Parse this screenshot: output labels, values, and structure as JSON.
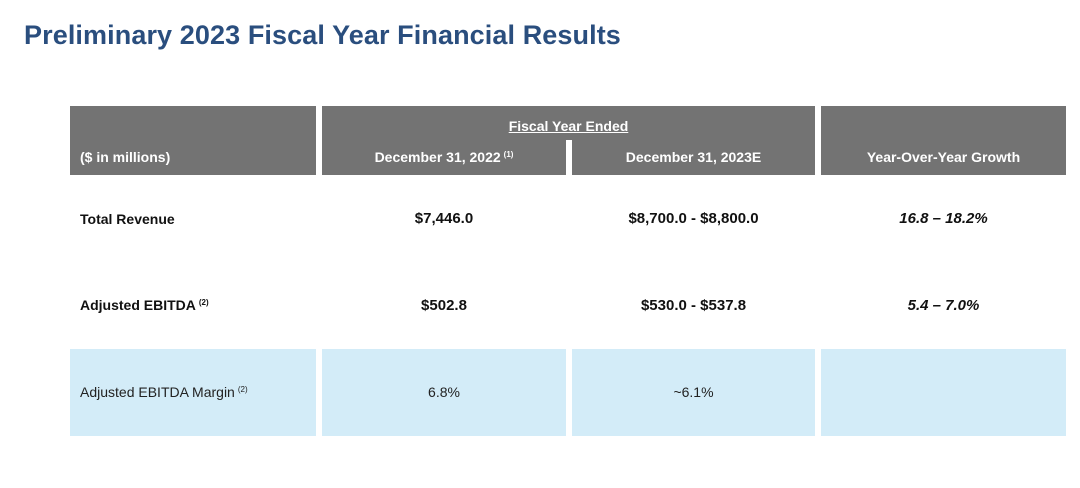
{
  "title": "Preliminary 2023 Fiscal Year Financial Results",
  "table": {
    "units_label": "($ in millions)",
    "group_caption": "Fiscal Year Ended",
    "columns": [
      {
        "label": "December 31, 2022",
        "footnote": "(1)"
      },
      {
        "label": "December 31, 2023E",
        "footnote": ""
      },
      {
        "label": "Year-Over-Year Growth",
        "footnote": ""
      }
    ],
    "rows": [
      {
        "label": "Total Revenue",
        "footnote": "",
        "values": [
          "$7,446.0",
          "$8,700.0 - $8,800.0",
          "16.8 – 18.2%"
        ]
      },
      {
        "label": "Adjusted EBITDA",
        "footnote": "(2)",
        "values": [
          "$502.8",
          "$530.0 - $537.8",
          "5.4 – 7.0%"
        ]
      },
      {
        "label": "Adjusted EBITDA Margin",
        "footnote": "(2)",
        "values": [
          "6.8%",
          "~6.1%",
          ""
        ]
      }
    ],
    "colors": {
      "header_bg": "#737373",
      "highlight_bg": "#d3ecf8",
      "title": "#2a4e7e"
    }
  }
}
